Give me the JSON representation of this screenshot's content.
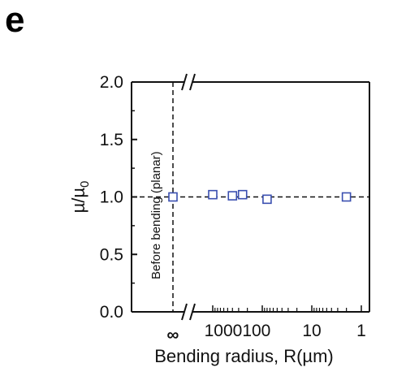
{
  "panel_label": "e",
  "chart_data": {
    "type": "scatter",
    "xlabel": "Bending radius, R(µm)",
    "ylabel_main": "µ/µ",
    "ylabel_sub": "0",
    "x_scale": "log-reversed",
    "x_tick_labels": [
      {
        "value": "inf",
        "label": "∞"
      },
      {
        "value": 1000,
        "label": "1000"
      },
      {
        "value": 100,
        "label": "100"
      },
      {
        "value": 10,
        "label": "10"
      },
      {
        "value": 1,
        "label": "1"
      }
    ],
    "x_tick_label_1000_100": "1000100",
    "ylim": [
      0.0,
      2.0
    ],
    "y_ticks": [
      "0.0",
      "0.5",
      "1.0",
      "1.5",
      "2.0"
    ],
    "annotation": "Before bending (planar)",
    "reference_line_y": 1.0,
    "points": [
      {
        "x": "inf",
        "y": 1.0
      },
      {
        "x": 1000,
        "y": 1.02
      },
      {
        "x": 400,
        "y": 1.01
      },
      {
        "x": 250,
        "y": 1.02
      },
      {
        "x": 80,
        "y": 0.98
      },
      {
        "x": 2,
        "y": 1.0
      }
    ],
    "marker_color": "#3a4fb0",
    "grid": false
  }
}
